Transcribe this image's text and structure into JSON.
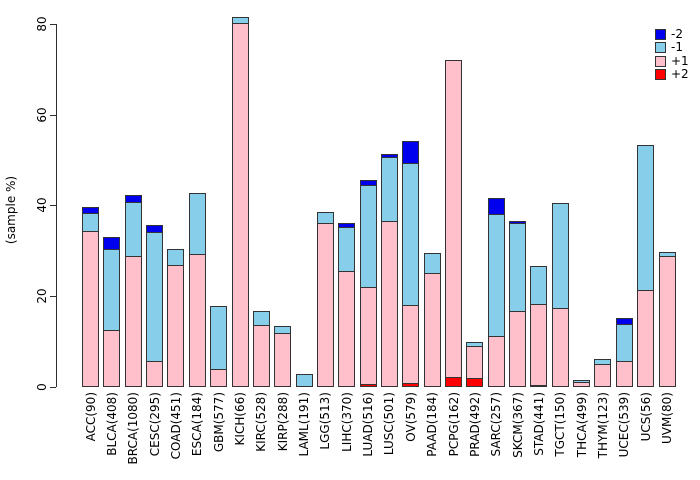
{
  "chart_data": {
    "type": "bar",
    "stacked": true,
    "title": "",
    "xlabel": "",
    "ylabel": "(sample %)",
    "ylim": [
      0,
      80
    ],
    "yticks": [
      0,
      20,
      40,
      60,
      80
    ],
    "grid": false,
    "legend_position": "top-right",
    "categories": [
      "ACC(90)",
      "BLCA(408)",
      "BRCA(1080)",
      "CESC(295)",
      "COAD(451)",
      "ESCA(184)",
      "GBM(577)",
      "KICH(66)",
      "KIRC(528)",
      "KIRP(288)",
      "LAML(191)",
      "LGG(513)",
      "LIHC(370)",
      "LUAD(516)",
      "LUSC(501)",
      "OV(579)",
      "PAAD(184)",
      "PCPG(162)",
      "PRAD(492)",
      "SARC(257)",
      "SKCM(367)",
      "STAD(441)",
      "TGCT(150)",
      "THCA(499)",
      "THYM(123)",
      "UCEC(539)",
      "UCS(56)",
      "UVM(80)"
    ],
    "stack_order_bottom_to_top": [
      "+2",
      "+1",
      "-1",
      "-2"
    ],
    "series": [
      {
        "name": "+2",
        "color": "#FF0000",
        "values": [
          0,
          0,
          0,
          0,
          0,
          0,
          0,
          0,
          0,
          0,
          0,
          0,
          0,
          0.6,
          0,
          0.9,
          0,
          2.1,
          1.9,
          0,
          0,
          0.5,
          0,
          0,
          0,
          0,
          0,
          0
        ]
      },
      {
        "name": "+1",
        "color": "#FFC0CB",
        "values": [
          34.4,
          12.5,
          28.9,
          5.8,
          26.8,
          29.3,
          4.0,
          80.3,
          13.6,
          11.8,
          0,
          36.1,
          25.6,
          21.7,
          36.6,
          17.5,
          25.1,
          70.0,
          7.3,
          11.3,
          16.8,
          18.1,
          17.3,
          1.0,
          5.1,
          5.8,
          21.4,
          28.8
        ]
      },
      {
        "name": "-1",
        "color": "#87CEEB",
        "values": [
          4.1,
          18.0,
          12.2,
          28.6,
          3.7,
          13.6,
          14.2,
          1.6,
          3.4,
          1.7,
          2.8,
          2.6,
          10.0,
          22.7,
          14.4,
          31.5,
          4.6,
          0,
          1.2,
          27.1,
          19.5,
          8.6,
          23.3,
          0.7,
          1.4,
          8.4,
          32.1,
          1.2
        ]
      },
      {
        "name": "-2",
        "color": "#0000EE",
        "values": [
          1.5,
          2.8,
          1.7,
          1.8,
          0,
          0,
          0,
          0,
          0,
          0,
          0,
          0,
          1.0,
          1.4,
          0.8,
          5.0,
          0,
          0,
          0,
          3.8,
          0.6,
          0,
          0,
          0,
          0,
          1.5,
          0,
          0
        ]
      }
    ],
    "legend": [
      {
        "label": "-2",
        "color": "#0000EE"
      },
      {
        "label": "-1",
        "color": "#87CEEB"
      },
      {
        "label": "+1",
        "color": "#FFC0CB"
      },
      {
        "label": "+2",
        "color": "#FF0000"
      }
    ]
  },
  "layout_colors": {
    "background": "#FFFFFF",
    "axis": "#2E2E2E",
    "bar_border": "#333333",
    "text": "#000000"
  }
}
